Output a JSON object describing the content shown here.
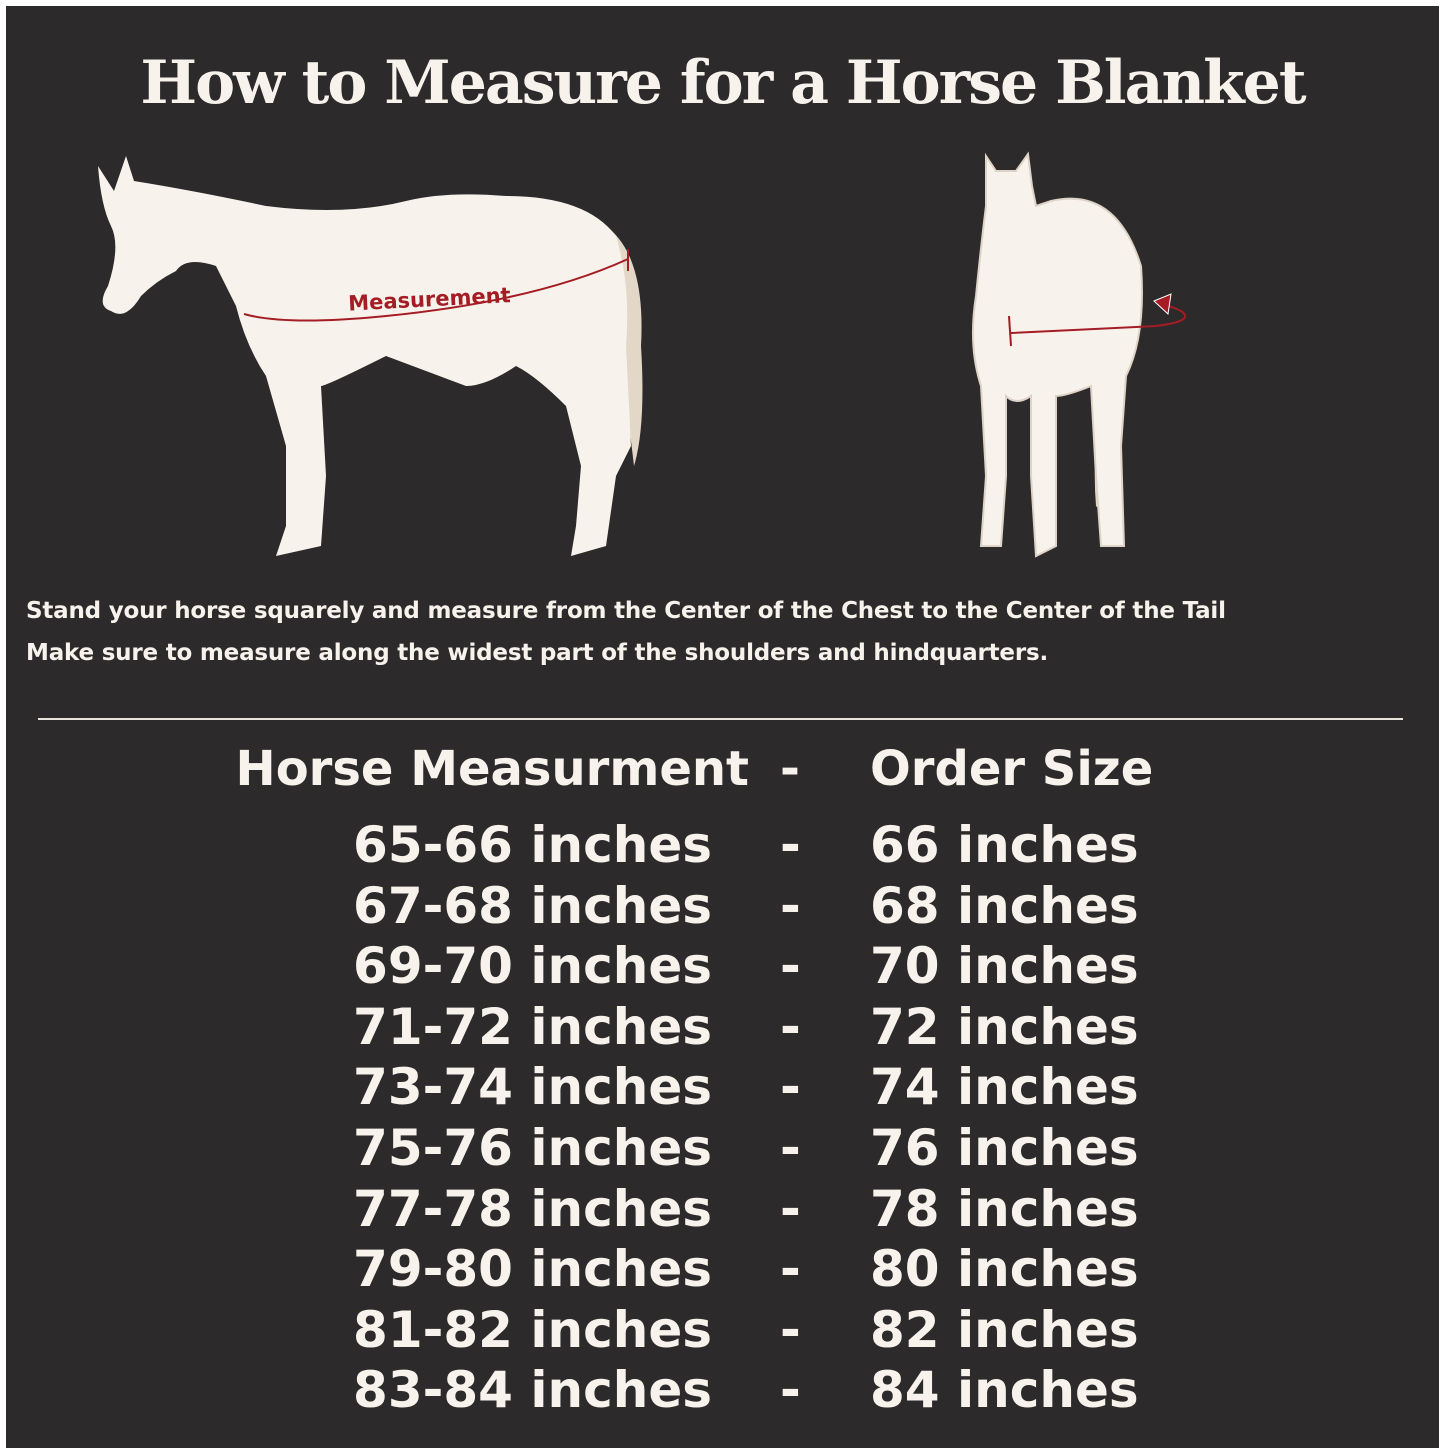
{
  "title": "How to Measure for a Horse Blanket",
  "diagram": {
    "side_label": "Measurement",
    "accent_color": "#a51c24",
    "horse_color": "#f7f3ec",
    "tail_color": "#e3d7c7"
  },
  "instructions": [
    "Stand your horse squarely and measure from the Center of the Chest to the Center of the Tail",
    "Make sure to measure along the widest part of the shoulders and hindquarters."
  ],
  "table": {
    "header": {
      "left": "Horse Measurment",
      "sep": "-",
      "right": "Order Size"
    },
    "rows": [
      {
        "measurement": "65-66 inches",
        "sep": "-",
        "size": "66 inches"
      },
      {
        "measurement": "67-68 inches",
        "sep": "-",
        "size": "68 inches"
      },
      {
        "measurement": "69-70 inches",
        "sep": "-",
        "size": "70 inches"
      },
      {
        "measurement": "71-72 inches",
        "sep": "-",
        "size": "72 inches"
      },
      {
        "measurement": "73-74 inches",
        "sep": "-",
        "size": "74 inches"
      },
      {
        "measurement": "75-76 inches",
        "sep": "-",
        "size": "76 inches"
      },
      {
        "measurement": "77-78 inches",
        "sep": "-",
        "size": "78 inches"
      },
      {
        "measurement": "79-80 inches",
        "sep": "-",
        "size": "80 inches"
      },
      {
        "measurement": "81-82 inches",
        "sep": "-",
        "size": "82 inches"
      },
      {
        "measurement": "83-84 inches",
        "sep": "-",
        "size": "84 inches"
      }
    ]
  }
}
